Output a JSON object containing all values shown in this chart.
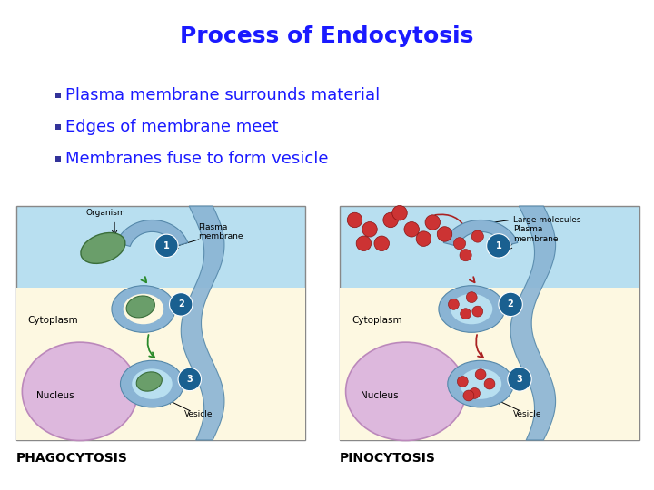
{
  "title": "Process of Endocytosis",
  "title_color": "#1a1aff",
  "title_fontsize": 18,
  "bullet_color": "#1a1aff",
  "bullet_fontsize": 13,
  "bullet_points": [
    "Plasma membrane surrounds material",
    "Edges of membrane meet",
    "Membranes fuse to form vesicle"
  ],
  "bullet_dot_color": "#333399",
  "label_phago": "PHAGOCYTOSIS",
  "label_pino": "PINOCYTOSIS",
  "label_fontsize": 10,
  "label_color": "black",
  "bg_color": "white",
  "sky_blue": "#b8dff0",
  "light_yellow": "#fdf8e1",
  "light_purple": "#ddb8dd",
  "membrane_blue": "#8ab4d4",
  "membrane_edge": "#5588aa",
  "step_circle_color": "#1a6090",
  "green_org": "#6a9e6a",
  "green_org_edge": "#3a6e3a",
  "arrow_green": "#2a8a2a",
  "arrow_dark_red": "#aa2222",
  "dot_red": "#cc3333",
  "dot_red_edge": "#881111"
}
